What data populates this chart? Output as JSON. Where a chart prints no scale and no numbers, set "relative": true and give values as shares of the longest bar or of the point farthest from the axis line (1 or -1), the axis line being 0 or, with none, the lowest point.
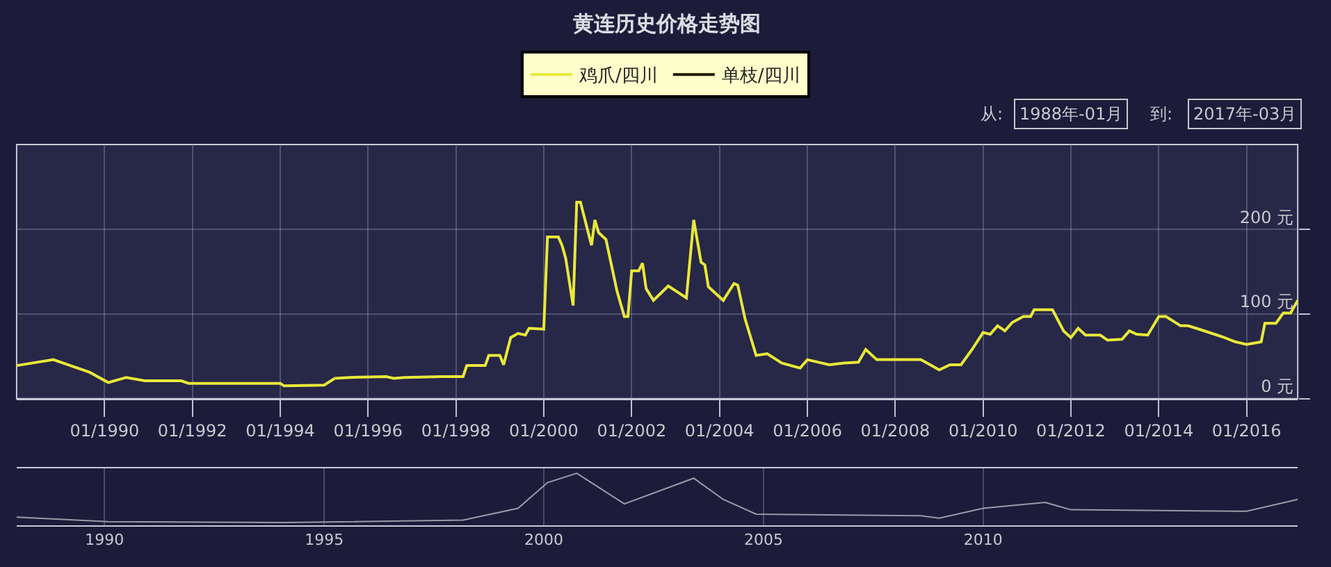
{
  "chart_data": [
    {
      "type": "line",
      "title": "黄连历史价格走势图",
      "x": [
        "1988-01",
        "1988-11",
        "1989-09",
        "1990-02",
        "1990-07",
        "1990-12",
        "1991-10",
        "1991-12",
        "1994-01",
        "1994-02",
        "1995-01",
        "1995-04",
        "1995-08",
        "1996-06",
        "1996-08",
        "1996-11",
        "1997-09",
        "1998-03",
        "1998-04",
        "1998-09",
        "1998-10",
        "1999-01",
        "1999-02",
        "1999-04",
        "1999-06",
        "1999-08",
        "1999-09",
        "2000-01",
        "2000-02",
        "2000-05",
        "2000-06",
        "2000-07",
        "2000-09",
        "2000-10",
        "2000-11",
        "2001-02",
        "2001-03",
        "2001-04",
        "2001-06",
        "2001-09",
        "2001-11",
        "2001-12",
        "2002-01",
        "2002-03",
        "2002-04",
        "2002-05",
        "2002-07",
        "2002-11",
        "2003-04",
        "2003-06",
        "2003-08",
        "2003-09",
        "2003-10",
        "2004-02",
        "2004-05",
        "2004-06",
        "2004-08",
        "2004-11",
        "2005-02",
        "2005-06",
        "2005-11",
        "2006-01",
        "2006-07",
        "2006-11",
        "2007-03",
        "2007-05",
        "2007-08",
        "2008-08",
        "2009-01",
        "2009-04",
        "2009-07",
        "2009-10",
        "2010-01",
        "2010-03",
        "2010-05",
        "2010-07",
        "2010-09",
        "2010-12",
        "2011-02",
        "2011-03",
        "2011-08",
        "2011-11",
        "2012-01",
        "2012-03",
        "2012-05",
        "2012-09",
        "2012-11",
        "2013-03",
        "2013-05",
        "2013-07",
        "2013-10",
        "2014-01",
        "2014-03",
        "2014-07",
        "2014-09",
        "2014-12",
        "2015-05",
        "2015-07",
        "2015-10",
        "2016-01",
        "2016-05",
        "2016-06",
        "2016-09",
        "2016-11",
        "2017-01",
        "2017-03"
      ],
      "series": [
        {
          "name": "鸡爪/四川",
          "color": "#e8e83a",
          "values": [
            39,
            46,
            31,
            19,
            25,
            21,
            21,
            18,
            18,
            15,
            16,
            24,
            25,
            26,
            24,
            25,
            26,
            26,
            39,
            39,
            51,
            51,
            40,
            72,
            77,
            75,
            83,
            82,
            191,
            191,
            181,
            166,
            110,
            232,
            232,
            181,
            211,
            196,
            188,
            127,
            97,
            97,
            151,
            151,
            160,
            130,
            116,
            133,
            119,
            211,
            161,
            158,
            132,
            116,
            136,
            134,
            94,
            51,
            53,
            42,
            36,
            46,
            40,
            42,
            43,
            58,
            46,
            46,
            34,
            40,
            40,
            58,
            78,
            76,
            86,
            80,
            90,
            97,
            97,
            105,
            105,
            80,
            72,
            83,
            75,
            75,
            69,
            70,
            80,
            76,
            75,
            97,
            97,
            86,
            86,
            82,
            75,
            72,
            67,
            64,
            67,
            89,
            89,
            101,
            101,
            116
          ]
        },
        {
          "name": "单枝/四川",
          "color": "#1a1a00",
          "values": [
            null,
            null,
            null,
            null,
            null,
            null,
            null,
            null,
            null,
            null,
            null,
            null,
            null,
            null,
            null,
            null,
            null,
            null,
            null,
            null,
            null,
            null,
            null,
            null,
            null,
            null,
            null,
            null,
            null,
            null,
            null,
            null,
            null,
            null,
            null,
            null,
            null,
            null,
            null,
            null,
            null,
            null,
            null,
            null,
            null,
            null,
            null,
            null,
            null,
            null,
            null,
            null,
            null,
            null,
            null,
            null,
            null,
            null,
            null,
            null,
            null,
            null,
            null,
            null,
            null,
            null,
            null,
            null,
            null,
            null,
            null,
            null,
            null,
            null,
            null,
            null,
            null,
            null,
            null,
            null,
            null,
            null,
            null,
            null,
            null,
            null,
            null,
            null,
            null,
            null,
            null,
            null,
            null,
            null,
            null,
            null,
            null,
            null,
            null,
            null,
            null,
            null,
            null,
            null,
            null,
            null
          ]
        }
      ],
      "xlim": [
        "1988-01",
        "2017-03"
      ],
      "xticks": [
        {
          "value": "1990-01",
          "label": "01/1990"
        },
        {
          "value": "1992-01",
          "label": "01/1992"
        },
        {
          "value": "1994-01",
          "label": "01/1994"
        },
        {
          "value": "1996-01",
          "label": "01/1996"
        },
        {
          "value": "1998-01",
          "label": "01/1998"
        },
        {
          "value": "2000-01",
          "label": "01/2000"
        },
        {
          "value": "2002-01",
          "label": "01/2002"
        },
        {
          "value": "2004-01",
          "label": "01/2004"
        },
        {
          "value": "2006-01",
          "label": "01/2006"
        },
        {
          "value": "2008-01",
          "label": "01/2008"
        },
        {
          "value": "2010-01",
          "label": "01/2010"
        },
        {
          "value": "2012-01",
          "label": "01/2012"
        },
        {
          "value": "2014-01",
          "label": "01/2014"
        },
        {
          "value": "2016-01",
          "label": "01/2016"
        }
      ],
      "ylim": [
        0,
        300
      ],
      "yticks": [
        {
          "value": 0,
          "label": "0 元"
        },
        {
          "value": 100,
          "label": "100 元"
        },
        {
          "value": 200,
          "label": "200 元"
        }
      ],
      "grid": true,
      "legend": "top",
      "marker": "none",
      "line_style": "solid",
      "annotations": [
        "从:",
        "1988年-01月",
        "到:",
        "2017年-03月"
      ]
    },
    {
      "type": "line",
      "relative": true,
      "x": [
        "1988-01",
        "1990-02",
        "1994-02",
        "1998-03",
        "1999-06",
        "2000-02",
        "2000-10",
        "2001-11",
        "2003-06",
        "2004-02",
        "2004-11",
        "2008-08",
        "2009-01",
        "2010-01",
        "2011-06",
        "2012-01",
        "2016-01",
        "2017-03"
      ],
      "series": [
        {
          "color": "#9a9aa8",
          "values": [
            0.11,
            0.02,
            0,
            0.05,
            0.29,
            0.81,
            1,
            0.38,
            0.9,
            0.47,
            0.17,
            0.14,
            0.09,
            0.29,
            0.41,
            0.26,
            0.23,
            0.47
          ]
        }
      ],
      "xlim": [
        "1988-01",
        "2017-03"
      ],
      "xticks": [
        {
          "value": "1990-01",
          "label": "1990"
        },
        {
          "value": "1995-01",
          "label": "1995"
        },
        {
          "value": "2000-01",
          "label": "2000"
        },
        {
          "value": "2005-01",
          "label": "2005"
        },
        {
          "value": "2010-01",
          "label": "2010"
        }
      ],
      "grid": "x",
      "tick_labels": "x",
      "legend": false,
      "marker": "none",
      "line_style": "solid"
    }
  ]
}
